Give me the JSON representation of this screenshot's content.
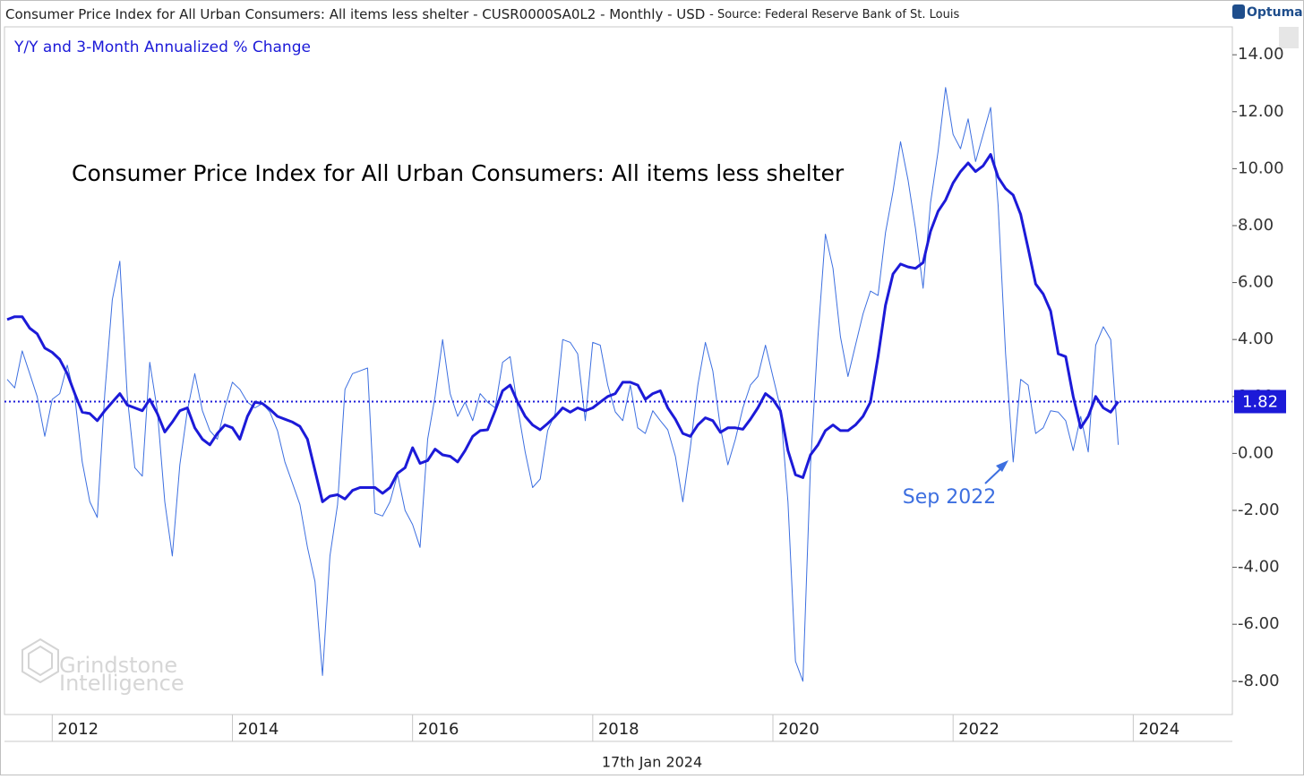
{
  "header": {
    "title": "Consumer Price Index for All Urban Consumers: All items less shelter - CUSR0000SA0L2 - Monthly - USD",
    "source": "- Source: Federal Reserve Bank of St. Louis",
    "logo": "Optuma"
  },
  "footer": {
    "date": "17th Jan 2024"
  },
  "watermark": [
    "Grindstone",
    "Intelligence"
  ],
  "chart_data": {
    "type": "line",
    "subtitle": "Y/Y and 3-Month Annualized % Change",
    "title": "Consumer Price Index for All Urban Consumers: All items less shelter",
    "annotation": {
      "text": "Sep 2022"
    },
    "xlim": [
      2011.47,
      2025.1
    ],
    "xticks": [
      2012,
      2014,
      2016,
      2018,
      2020,
      2022,
      2024
    ],
    "ylim": [
      -9.17,
      14.98
    ],
    "yticks": [
      {
        "value": 14,
        "label": "14.00"
      },
      {
        "value": 12,
        "label": "12.00"
      },
      {
        "value": 10,
        "label": "10.00"
      },
      {
        "value": 8,
        "label": "8.00"
      },
      {
        "value": 6,
        "label": "6.00"
      },
      {
        "value": 4,
        "label": "4.00"
      },
      {
        "value": 2,
        "label": "2.00"
      },
      {
        "value": 0,
        "label": "0.00"
      },
      {
        "value": -2,
        "label": "-2.00"
      },
      {
        "value": -4,
        "label": "-4.00"
      },
      {
        "value": -6,
        "label": "-6.00"
      },
      {
        "value": -8,
        "label": "-8.00"
      }
    ],
    "grid": false,
    "x": [
      2011.5,
      2011.583,
      2011.667,
      2011.75,
      2011.833,
      2011.917,
      2012,
      2012.083,
      2012.167,
      2012.25,
      2012.333,
      2012.417,
      2012.5,
      2012.583,
      2012.667,
      2012.75,
      2012.833,
      2012.917,
      2013,
      2013.083,
      2013.167,
      2013.25,
      2013.333,
      2013.417,
      2013.5,
      2013.583,
      2013.667,
      2013.75,
      2013.833,
      2013.917,
      2014,
      2014.083,
      2014.167,
      2014.25,
      2014.333,
      2014.417,
      2014.5,
      2014.583,
      2014.667,
      2014.75,
      2014.833,
      2014.917,
      2015,
      2015.083,
      2015.167,
      2015.25,
      2015.333,
      2015.417,
      2015.5,
      2015.583,
      2015.667,
      2015.75,
      2015.833,
      2015.917,
      2016,
      2016.083,
      2016.167,
      2016.25,
      2016.333,
      2016.417,
      2016.5,
      2016.583,
      2016.667,
      2016.75,
      2016.833,
      2016.917,
      2017,
      2017.083,
      2017.167,
      2017.25,
      2017.333,
      2017.417,
      2017.5,
      2017.583,
      2017.667,
      2017.75,
      2017.833,
      2017.917,
      2018,
      2018.083,
      2018.167,
      2018.25,
      2018.333,
      2018.417,
      2018.5,
      2018.583,
      2018.667,
      2018.75,
      2018.833,
      2018.917,
      2019,
      2019.083,
      2019.167,
      2019.25,
      2019.333,
      2019.417,
      2019.5,
      2019.583,
      2019.667,
      2019.75,
      2019.833,
      2019.917,
      2020,
      2020.083,
      2020.167,
      2020.25,
      2020.333,
      2020.417,
      2020.5,
      2020.583,
      2020.667,
      2020.75,
      2020.833,
      2020.917,
      2021,
      2021.083,
      2021.167,
      2021.25,
      2021.333,
      2021.417,
      2021.5,
      2021.583,
      2021.667,
      2021.75,
      2021.833,
      2021.917,
      2022,
      2022.083,
      2022.167,
      2022.25,
      2022.333,
      2022.417,
      2022.5,
      2022.583,
      2022.667,
      2022.75,
      2022.833,
      2022.917,
      2023,
      2023.083,
      2023.167,
      2023.25,
      2023.333,
      2023.417,
      2023.5,
      2023.583,
      2023.667,
      2023.75,
      2023.833
    ],
    "series": [
      {
        "color": "#1c1ad8",
        "width": 3,
        "values": [
          4.7,
          4.8,
          4.8,
          4.4,
          4.2,
          3.7,
          3.55,
          3.3,
          2.8,
          2.1,
          1.45,
          1.4,
          1.15,
          1.5,
          1.8,
          2.1,
          1.7,
          1.6,
          1.5,
          1.9,
          1.4,
          0.75,
          1.1,
          1.5,
          1.6,
          0.9,
          0.5,
          0.3,
          0.7,
          1.0,
          0.9,
          0.5,
          1.3,
          1.8,
          1.75,
          1.55,
          1.3,
          1.2,
          1.1,
          0.95,
          0.5,
          -0.6,
          -1.7,
          -1.5,
          -1.45,
          -1.6,
          -1.3,
          -1.2,
          -1.2,
          -1.2,
          -1.4,
          -1.2,
          -0.7,
          -0.5,
          0.2,
          -0.35,
          -0.25,
          0.15,
          -0.05,
          -0.1,
          -0.3,
          0.1,
          0.6,
          0.8,
          0.83,
          1.5,
          2.2,
          2.4,
          1.8,
          1.3,
          1.0,
          0.83,
          1.05,
          1.3,
          1.6,
          1.45,
          1.6,
          1.5,
          1.6,
          1.8,
          2.0,
          2.1,
          2.5,
          2.5,
          2.4,
          1.9,
          2.1,
          2.2,
          1.6,
          1.2,
          0.7,
          0.6,
          1.0,
          1.25,
          1.15,
          0.74,
          0.9,
          0.9,
          0.85,
          1.2,
          1.6,
          2.1,
          1.9,
          1.5,
          0.1,
          -0.75,
          -0.85,
          -0.05,
          0.3,
          0.8,
          1.0,
          0.8,
          0.8,
          1.0,
          1.3,
          1.8,
          3.4,
          5.2,
          6.3,
          6.65,
          6.55,
          6.5,
          6.7,
          7.8,
          8.5,
          8.9,
          9.5,
          9.9,
          10.2,
          9.9,
          10.1,
          10.5,
          9.7,
          9.3,
          9.07,
          8.4,
          7.2,
          5.95,
          5.6,
          5.0,
          3.5,
          3.4,
          2.0,
          0.9,
          1.3,
          2.0,
          1.6,
          1.45,
          1.82
        ]
      },
      {
        "color": "#3d6fe0",
        "width": 1,
        "values": [
          2.6,
          2.3,
          3.6,
          2.8,
          2.0,
          0.6,
          1.9,
          2.1,
          3.1,
          2.0,
          -0.3,
          -1.7,
          -2.25,
          2.1,
          5.4,
          6.75,
          2.0,
          -0.5,
          -0.8,
          3.2,
          1.5,
          -1.7,
          -3.6,
          -0.4,
          1.5,
          2.8,
          1.5,
          0.8,
          0.5,
          1.6,
          2.5,
          2.25,
          1.8,
          1.6,
          1.75,
          1.45,
          0.8,
          -0.3,
          -1.05,
          -1.8,
          -3.3,
          -4.5,
          -7.8,
          -3.6,
          -1.8,
          2.25,
          2.8,
          2.9,
          3.0,
          -2.1,
          -2.2,
          -1.7,
          -0.74,
          -2.0,
          -2.5,
          -3.3,
          0.5,
          2.0,
          4.0,
          2.1,
          1.3,
          1.8,
          1.15,
          2.1,
          1.8,
          1.6,
          3.2,
          3.4,
          1.6,
          0.05,
          -1.2,
          -0.9,
          0.8,
          1.4,
          4.0,
          3.9,
          3.5,
          1.15,
          3.9,
          3.8,
          2.4,
          1.46,
          1.15,
          2.4,
          0.9,
          0.7,
          1.5,
          1.15,
          0.83,
          -0.1,
          -1.7,
          0.2,
          2.4,
          3.9,
          2.9,
          0.9,
          -0.4,
          0.5,
          1.6,
          2.4,
          2.7,
          3.8,
          2.7,
          1.6,
          -1.7,
          -7.3,
          -8.0,
          -0.4,
          4.1,
          7.7,
          6.5,
          4.1,
          2.7,
          3.8,
          4.9,
          5.7,
          5.55,
          7.75,
          9.2,
          10.95,
          9.6,
          7.9,
          5.8,
          8.8,
          10.6,
          12.85,
          11.2,
          10.7,
          11.75,
          10.25,
          11.2,
          12.15,
          8.7,
          3.5,
          -0.3,
          2.6,
          2.4,
          0.7,
          0.9,
          1.5,
          1.45,
          1.15,
          0.1,
          1.3,
          0.05,
          3.8,
          4.45,
          4.0,
          0.3
        ]
      }
    ]
  }
}
